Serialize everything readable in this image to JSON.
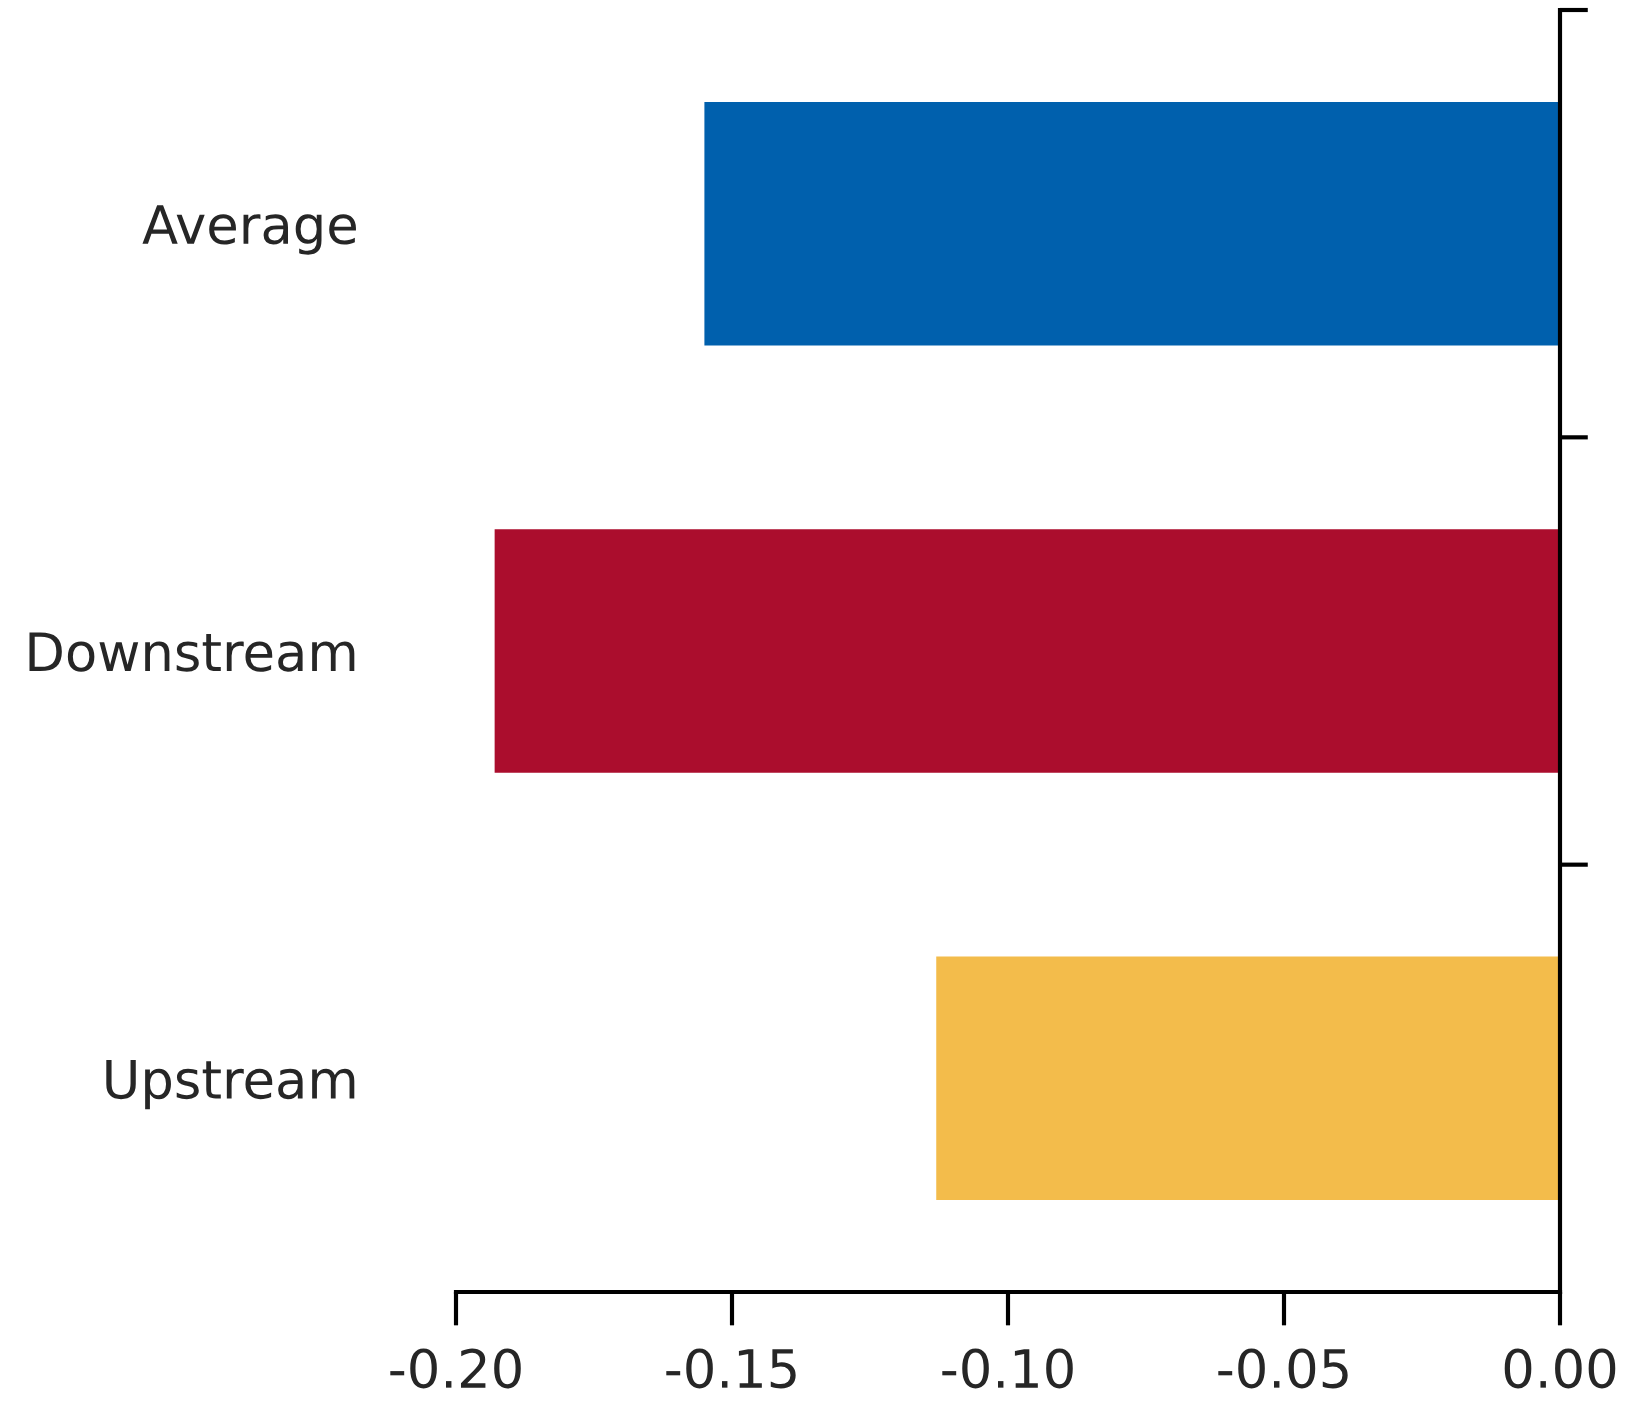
{
  "chart_data": {
    "type": "bar",
    "orientation": "horizontal",
    "categories": [
      "Average",
      "Downstream",
      "Upstream"
    ],
    "values": [
      -0.155,
      -0.193,
      -0.113
    ],
    "colors": [
      "#0060ad",
      "#ab0d2d",
      "#f3bc4b"
    ],
    "xlim": [
      -0.2,
      0.0
    ],
    "xticks": [
      {
        "value": -0.2,
        "label": "-0.20"
      },
      {
        "value": -0.15,
        "label": "-0.15"
      },
      {
        "value": -0.1,
        "label": "-0.10"
      },
      {
        "value": -0.05,
        "label": "-0.05"
      },
      {
        "value": 0.0,
        "label": "0.00"
      }
    ],
    "grid": false,
    "legend": false
  }
}
